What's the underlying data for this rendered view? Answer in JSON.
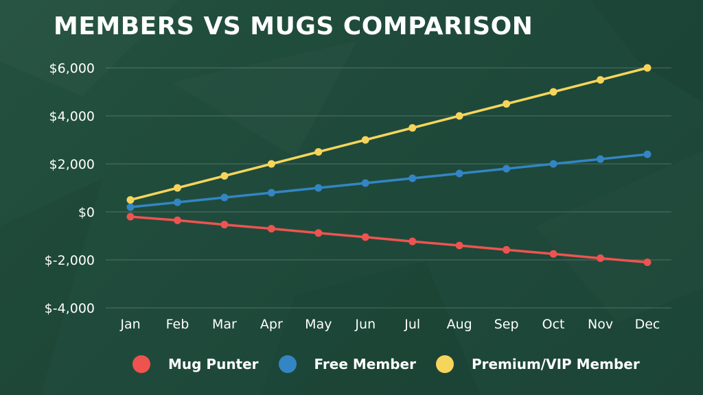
{
  "chart_data": {
    "type": "line",
    "title": "MEMBERS VS MUGS COMPARISON",
    "xlabel": "",
    "ylabel": "",
    "categories": [
      "Jan",
      "Feb",
      "Mar",
      "Apr",
      "May",
      "Jun",
      "Jul",
      "Aug",
      "Sep",
      "Oct",
      "Nov",
      "Dec"
    ],
    "ylim": [
      -4000,
      6000
    ],
    "yticks": [
      6000,
      4000,
      2000,
      0,
      -2000,
      -4000
    ],
    "ytick_labels": [
      "$6,000",
      "$4,000",
      "$2,000",
      "$0",
      "$-2,000",
      "$-4,000"
    ],
    "grid": true,
    "legend_position": "bottom",
    "series": [
      {
        "name": "Mug Punter",
        "color": "#ef5350",
        "values": [
          -200,
          -350,
          -530,
          -700,
          -880,
          -1050,
          -1230,
          -1400,
          -1580,
          -1750,
          -1930,
          -2100
        ]
      },
      {
        "name": "Free Member",
        "color": "#3385c4",
        "values": [
          200,
          400,
          600,
          800,
          1000,
          1200,
          1400,
          1600,
          1800,
          2000,
          2200,
          2400
        ]
      },
      {
        "name": "Premium/VIP Member",
        "color": "#f6d55c",
        "values": [
          500,
          1000,
          1500,
          2000,
          2500,
          3000,
          3500,
          4000,
          4500,
          5000,
          5500,
          6000
        ]
      }
    ]
  }
}
